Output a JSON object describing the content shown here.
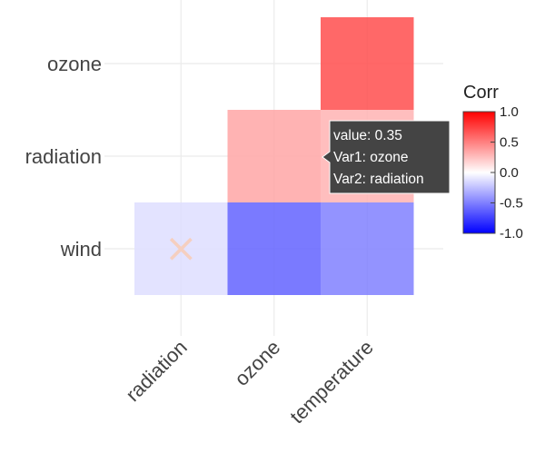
{
  "chart_data": {
    "type": "heatmap",
    "x_categories": [
      "radiation",
      "ozone",
      "temperature"
    ],
    "y_categories": [
      "wind",
      "radiation",
      "ozone"
    ],
    "cells": [
      {
        "x": "temperature",
        "y": "ozone",
        "value": 0.7
      },
      {
        "x": "ozone",
        "y": "radiation",
        "value": 0.35
      },
      {
        "x": "temperature",
        "y": "radiation",
        "value": 0.3
      },
      {
        "x": "radiation",
        "y": "wind",
        "value": -0.13
      },
      {
        "x": "ozone",
        "y": "wind",
        "value": -0.61
      },
      {
        "x": "temperature",
        "y": "wind",
        "value": -0.5
      }
    ],
    "marked_cells": [
      {
        "x": "radiation",
        "y": "wind",
        "marker": "×"
      }
    ],
    "legend": {
      "title": "Corr",
      "range": [
        -1,
        1
      ],
      "ticks": [
        "1.0",
        "0.5",
        "0.0",
        "-0.5",
        "-1.0"
      ],
      "colors": {
        "low": "#0000ff",
        "mid": "#ffffff",
        "high": "#ff0000"
      }
    },
    "grid": true,
    "legend_placement": "right",
    "tooltip": {
      "lines": [
        "value:  0.35",
        "Var1: ozone",
        "Var2: radiation"
      ],
      "background": "#444444"
    }
  }
}
